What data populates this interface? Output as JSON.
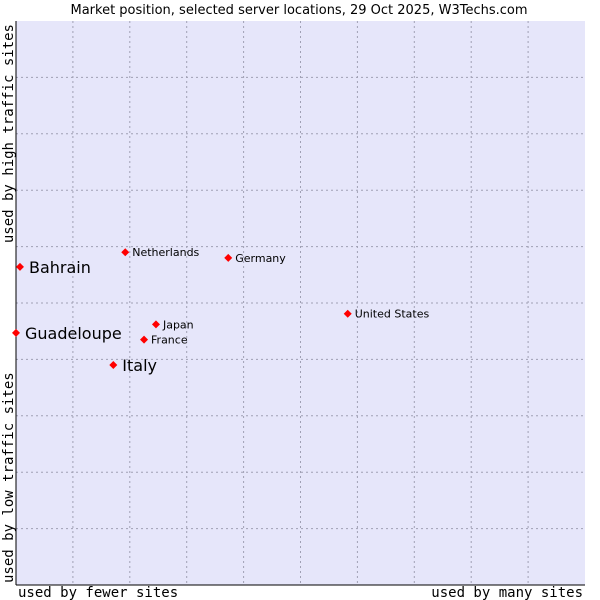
{
  "chart_data": {
    "type": "scatter",
    "title": "Market position, selected server locations, 29 Oct 2025, W3Techs.com",
    "xlabel_left": "used by fewer sites",
    "xlabel_right": "used by many sites",
    "ylabel_bottom": "used by low traffic sites",
    "ylabel_top": "used by high traffic sites",
    "xlim": [
      0,
      100
    ],
    "ylim": [
      0,
      100
    ],
    "grid": true,
    "colors": {
      "plot_bg": "#e6e6fa",
      "grid": "#a0a0b4",
      "point": "#ff0000",
      "axis": "#000000"
    },
    "points": [
      {
        "label": "Bahrain",
        "x": 0.7,
        "y": 56.4,
        "highlight": true
      },
      {
        "label": "Guadeloupe",
        "x": 0.0,
        "y": 44.7,
        "highlight": true
      },
      {
        "label": "Italy",
        "x": 17.1,
        "y": 39.0,
        "highlight": true
      },
      {
        "label": "Netherlands",
        "x": 19.2,
        "y": 59.0,
        "highlight": false
      },
      {
        "label": "Germany",
        "x": 37.3,
        "y": 58.0,
        "highlight": false
      },
      {
        "label": "Japan",
        "x": 24.6,
        "y": 46.2,
        "highlight": false
      },
      {
        "label": "France",
        "x": 22.5,
        "y": 43.5,
        "highlight": false
      },
      {
        "label": "United States",
        "x": 58.3,
        "y": 48.1,
        "highlight": false
      }
    ]
  }
}
